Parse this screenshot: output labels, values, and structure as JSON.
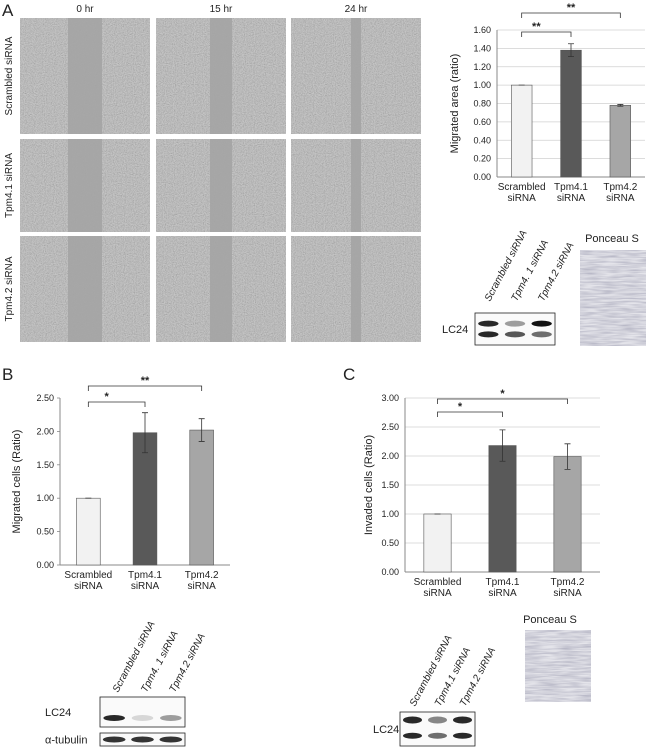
{
  "panel_labels": [
    "A",
    "B",
    "C"
  ],
  "time_labels": [
    "0 hr",
    "15 hr",
    "24 hr"
  ],
  "row_labels": [
    "Scrambled siRNA",
    "Tpm4.1 siRNA",
    "Tpm4.2 siRNA"
  ],
  "blots": [
    {
      "lanes": [
        "Scrambled siRNA",
        "Tpm4. 1 siRNA",
        "Tpm4.2 siRNA"
      ],
      "bands": [
        "LC24"
      ],
      "stain_title": "Ponceau S"
    },
    {
      "lanes": [
        "Scrambled siRNA",
        "Tpm4. 1 siRNA",
        "Tpm4.2 siRNA"
      ],
      "bands": [
        "LC24",
        "α-tubulin"
      ]
    },
    {
      "lanes": [
        "Scrambled siRNA",
        "Tpm4.1 siRNA",
        "Tpm4.2 siRNA"
      ],
      "bands": [
        "LC24"
      ],
      "stain_title": "Ponceau S"
    }
  ],
  "chart_data": [
    {
      "type": "bar",
      "y_label": "Migrated area (ratio)",
      "categories": [
        "Scrambled siRNA",
        "Tpm4.1 siRNA",
        "Tpm4.2 siRNA"
      ],
      "values": [
        1.0,
        1.38,
        0.78
      ],
      "errors": [
        0.0,
        0.07,
        0.01
      ],
      "colors": [
        "#f2f2f2",
        "#595959",
        "#a6a6a6"
      ],
      "ylim": [
        0,
        1.6
      ],
      "yticks": [
        {
          "value": 0,
          "label": "0.00"
        },
        {
          "value": 0.2,
          "label": "0.20"
        },
        {
          "value": 0.4,
          "label": "0.40"
        },
        {
          "value": 0.6,
          "label": "0.60"
        },
        {
          "value": 0.8,
          "label": "0.80"
        },
        {
          "value": 1,
          "label": "1.00"
        },
        {
          "value": 1.2,
          "label": "1.20"
        },
        {
          "value": 1.4,
          "label": "1.40"
        },
        {
          "value": 1.6,
          "label": "1.60"
        }
      ],
      "grid": true,
      "significance": [
        "**",
        "**"
      ]
    },
    {
      "type": "bar",
      "y_label": "Migrated cells (Ratio)",
      "categories": [
        "Scrambled siRNA",
        "Tpm4.1 siRNA",
        "Tpm4.2 siRNA"
      ],
      "values": [
        1.0,
        1.98,
        2.02
      ],
      "errors": [
        0.0,
        0.3,
        0.17
      ],
      "colors": [
        "#f2f2f2",
        "#595959",
        "#a6a6a6"
      ],
      "ylim": [
        0,
        2.5
      ],
      "yticks": [
        {
          "value": 0,
          "label": "0.00"
        },
        {
          "value": 0.5,
          "label": "0.50"
        },
        {
          "value": 1,
          "label": "1.00"
        },
        {
          "value": 1.5,
          "label": "1.50"
        },
        {
          "value": 2,
          "label": "2.00"
        },
        {
          "value": 2.5,
          "label": "2.50"
        }
      ],
      "grid": false,
      "significance": [
        "*",
        "**"
      ]
    },
    {
      "type": "bar",
      "y_label": "Invaded cells (Ratio)",
      "categories": [
        "Scrambled siRNA",
        "Tpm4.1 siRNA",
        "Tpm4.2 siRNA"
      ],
      "values": [
        1.0,
        2.18,
        1.99
      ],
      "errors": [
        0.0,
        0.27,
        0.22
      ],
      "colors": [
        "#f2f2f2",
        "#595959",
        "#a6a6a6"
      ],
      "ylim": [
        0,
        3
      ],
      "yticks": [
        {
          "value": 0,
          "label": "0.00"
        },
        {
          "value": 0.5,
          "label": "0.50"
        },
        {
          "value": 1,
          "label": "1.00"
        },
        {
          "value": 1.5,
          "label": "1.50"
        },
        {
          "value": 2,
          "label": "2.00"
        },
        {
          "value": 2.5,
          "label": "2.50"
        },
        {
          "value": 3,
          "label": "3.00"
        }
      ],
      "grid": true,
      "significance": [
        "*",
        "*"
      ]
    }
  ]
}
